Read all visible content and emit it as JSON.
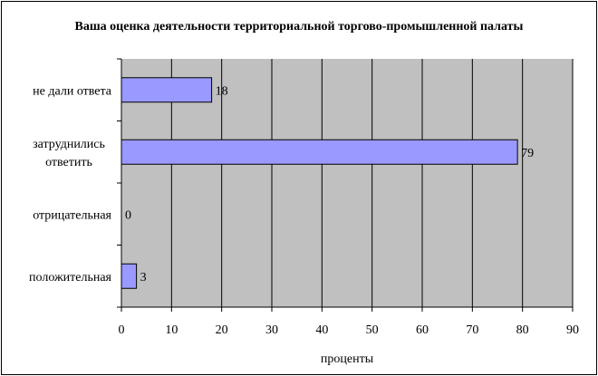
{
  "chart_data": {
    "type": "bar",
    "orientation": "horizontal",
    "title": "Ваша оценка деятельности территориальной торгово-промышленной палаты",
    "xlabel": "проценты",
    "ylabel": "",
    "categories": [
      "не дали ответа",
      "затруднились ответить",
      "отрицательная",
      "положительная"
    ],
    "values": [
      18,
      79,
      0,
      3
    ],
    "xlim": [
      0,
      90
    ],
    "xticks": [
      0,
      10,
      20,
      30,
      40,
      50,
      60,
      70,
      80,
      90
    ],
    "grid": true,
    "legend": "none",
    "colors": {
      "bar": "#9999FF",
      "plot_background": "#C0C0C0",
      "gridline": "#000000"
    }
  }
}
